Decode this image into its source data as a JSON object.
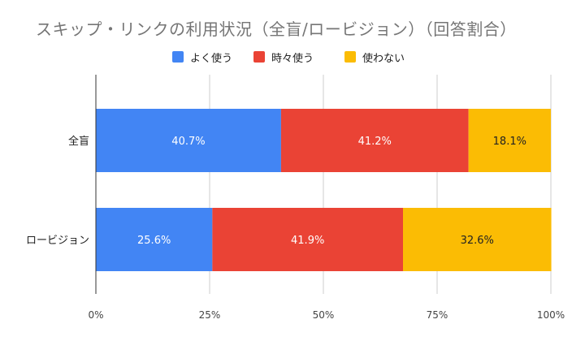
{
  "chart_data": {
    "type": "bar",
    "orientation": "horizontal",
    "stacked": "percent",
    "title": "スキップ・リンクの利用状況（全盲/ロービジョン）（回答割合）",
    "categories": [
      "全盲",
      "ロービジョン"
    ],
    "series": [
      {
        "name": "よく使う",
        "color": "#4285F4",
        "values": [
          40.7,
          25.6
        ],
        "labels": [
          "40.7%",
          "25.6%"
        ]
      },
      {
        "name": "時々使う",
        "color": "#EA4335",
        "values": [
          41.2,
          41.9
        ],
        "labels": [
          "41.2%",
          "41.9%"
        ]
      },
      {
        "name": "使わない",
        "color": "#FBBC04",
        "values": [
          18.1,
          32.6
        ],
        "labels": [
          "18.1%",
          "32.6%"
        ]
      }
    ],
    "xlim": [
      0,
      100
    ],
    "xticks": [
      "0%",
      "25%",
      "50%",
      "75%",
      "100%"
    ],
    "grid": true,
    "legend_position": "top-center"
  }
}
